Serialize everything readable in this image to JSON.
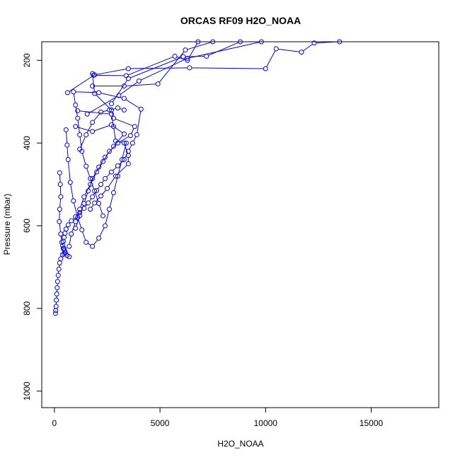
{
  "chart_data": {
    "type": "line",
    "title": "ORCAS RF09 H2O_NOAA",
    "xlabel": "H2O_NOAA",
    "ylabel": "Pressure (mbar)",
    "xlim": [
      -600,
      18200
    ],
    "ylim": [
      1040,
      155
    ],
    "y_inverted": true,
    "grid": false,
    "legend": "none",
    "color": "#0000ff",
    "markers": "open-circle",
    "xticks": [
      0,
      5000,
      10000,
      15000
    ],
    "yticks": [
      200,
      400,
      600,
      800,
      1000
    ],
    "series": [
      {
        "points": [
          [
            50,
            812
          ],
          [
            60,
            805
          ],
          [
            80,
            795
          ],
          [
            90,
            780
          ],
          [
            110,
            765
          ],
          [
            130,
            750
          ],
          [
            150,
            735
          ],
          [
            180,
            720
          ],
          [
            210,
            705
          ],
          [
            250,
            690
          ],
          [
            300,
            680
          ],
          [
            380,
            670
          ],
          [
            460,
            668
          ],
          [
            520,
            665
          ],
          [
            480,
            660
          ],
          [
            420,
            655
          ],
          [
            390,
            648
          ],
          [
            420,
            638
          ],
          [
            460,
            628
          ],
          [
            500,
            618
          ],
          [
            550,
            608
          ],
          [
            650,
            598
          ],
          [
            800,
            588
          ],
          [
            1000,
            578
          ],
          [
            1200,
            568
          ],
          [
            1400,
            558
          ],
          [
            1600,
            545
          ],
          [
            1800,
            530
          ],
          [
            2000,
            515
          ],
          [
            2200,
            500
          ],
          [
            2400,
            486
          ],
          [
            2700,
            470
          ],
          [
            3000,
            455
          ],
          [
            3300,
            440
          ],
          [
            3500,
            420
          ],
          [
            3700,
            400
          ],
          [
            3900,
            380
          ],
          [
            4100,
            318
          ],
          [
            3300,
            292
          ],
          [
            2100,
            278
          ],
          [
            900,
            276
          ],
          [
            1000,
            308
          ],
          [
            1100,
            340
          ],
          [
            1200,
            380
          ],
          [
            1300,
            420
          ],
          [
            1500,
            456
          ],
          [
            1700,
            486
          ],
          [
            1900,
            516
          ],
          [
            2100,
            546
          ],
          [
            2300,
            576
          ]
        ]
      },
      {
        "points": [
          [
            250,
            472
          ],
          [
            280,
            500
          ],
          [
            300,
            530
          ],
          [
            250,
            560
          ],
          [
            230,
            590
          ],
          [
            300,
            620
          ],
          [
            350,
            640
          ],
          [
            450,
            655
          ],
          [
            500,
            665
          ],
          [
            600,
            672
          ],
          [
            700,
            675
          ]
        ]
      },
      {
        "points": [
          [
            550,
            368
          ],
          [
            600,
            405
          ],
          [
            650,
            440
          ],
          [
            750,
            495
          ],
          [
            900,
            540
          ],
          [
            1100,
            580
          ],
          [
            1300,
            610
          ],
          [
            1500,
            640
          ],
          [
            1800,
            650
          ],
          [
            2100,
            630
          ],
          [
            2400,
            600
          ],
          [
            2600,
            560
          ],
          [
            2800,
            520
          ],
          [
            3000,
            480
          ],
          [
            3200,
            440
          ],
          [
            3400,
            400
          ]
        ]
      },
      {
        "points": [
          [
            620,
            278
          ],
          [
            1900,
            235
          ],
          [
            3500,
            220
          ],
          [
            6400,
            218
          ],
          [
            10000,
            220
          ],
          [
            10500,
            172
          ],
          [
            11700,
            180
          ],
          [
            12300,
            158
          ],
          [
            13500,
            155
          ]
        ]
      },
      {
        "points": [
          [
            1850,
            236
          ],
          [
            3400,
            237
          ],
          [
            5700,
            190
          ],
          [
            6300,
            200
          ],
          [
            6800,
            155
          ]
        ]
      },
      {
        "points": [
          [
            1800,
            262
          ],
          [
            3300,
            262
          ],
          [
            4900,
            257
          ],
          [
            6200,
            175
          ],
          [
            7500,
            155
          ]
        ]
      },
      {
        "points": [
          [
            2700,
            305
          ],
          [
            3500,
            244
          ],
          [
            6100,
            191
          ],
          [
            7200,
            190
          ],
          [
            8800,
            155
          ]
        ]
      },
      {
        "points": [
          [
            1550,
            330
          ],
          [
            3050,
            285
          ],
          [
            4000,
            250
          ],
          [
            6300,
            195
          ],
          [
            9800,
            155
          ]
        ]
      },
      {
        "points": [
          [
            1100,
            322
          ],
          [
            2700,
            330
          ],
          [
            2800,
            360
          ],
          [
            2900,
            395
          ],
          [
            3300,
            400
          ],
          [
            3500,
            430
          ],
          [
            3500,
            450
          ],
          [
            2900,
            480
          ],
          [
            2500,
            510
          ],
          [
            2200,
            528
          ],
          [
            1900,
            545
          ],
          [
            1700,
            560
          ]
        ]
      },
      {
        "points": [
          [
            1000,
            360
          ],
          [
            1800,
            372
          ],
          [
            2700,
            356
          ],
          [
            3300,
            378
          ],
          [
            2800,
            408
          ],
          [
            2400,
            434
          ],
          [
            2100,
            458
          ],
          [
            1800,
            486
          ],
          [
            1600,
            516
          ],
          [
            1400,
            546
          ],
          [
            1200,
            576
          ],
          [
            1000,
            606
          ]
        ]
      },
      {
        "points": [
          [
            1800,
            232
          ],
          [
            1900,
            280
          ],
          [
            2700,
            320
          ],
          [
            2800,
            340
          ],
          [
            3800,
            360
          ],
          [
            3600,
            382
          ],
          [
            3000,
            400
          ],
          [
            2600,
            420
          ],
          [
            2300,
            445
          ],
          [
            2000,
            470
          ],
          [
            1700,
            500
          ],
          [
            1400,
            530
          ],
          [
            1200,
            560
          ],
          [
            1000,
            590
          ],
          [
            800,
            620
          ],
          [
            700,
            650
          ]
        ]
      },
      {
        "points": [
          [
            1200,
            415
          ],
          [
            1500,
            380
          ],
          [
            1800,
            350
          ],
          [
            2200,
            325
          ],
          [
            2600,
            320
          ],
          [
            3000,
            315
          ],
          [
            3300,
            320
          ]
        ]
      }
    ]
  }
}
